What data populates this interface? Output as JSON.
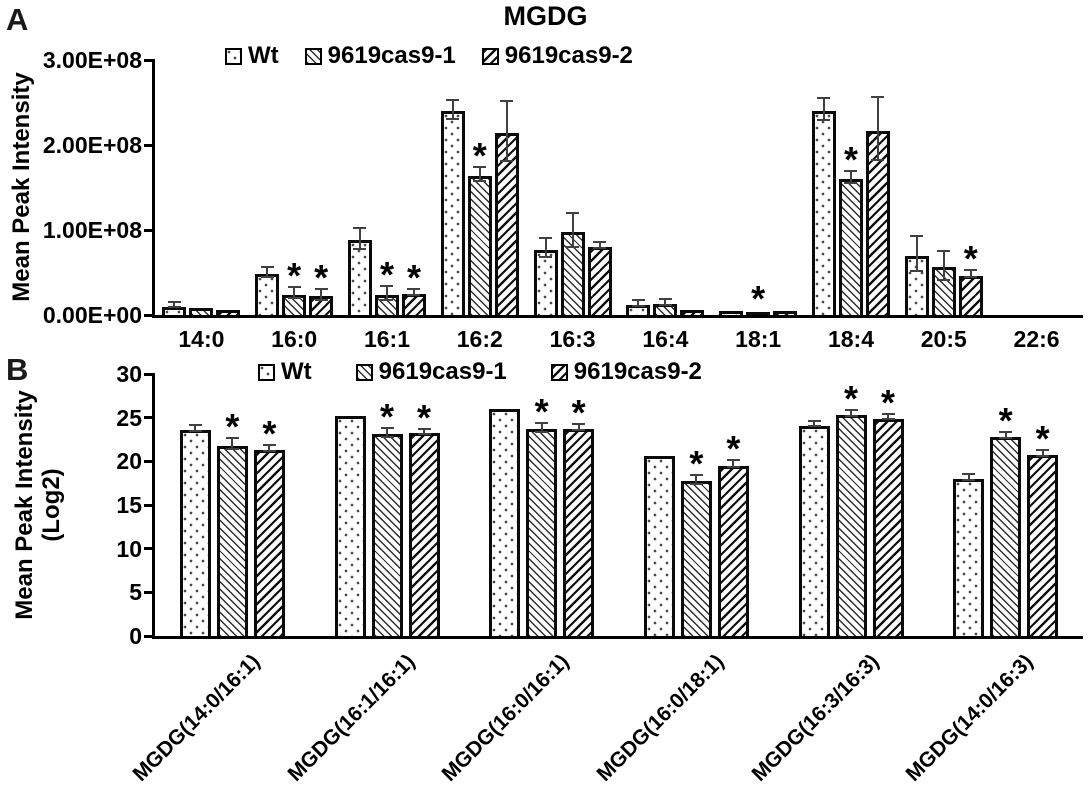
{
  "chart_data": [
    {
      "panel_label": "A",
      "type": "bar",
      "title": "MGDG",
      "ylabel": "Mean Peak Intensity",
      "ylim": [
        0,
        300000000
      ],
      "ytick_values": [
        0,
        100000000,
        200000000,
        300000000
      ],
      "ytick_labels": [
        "0.00E+00",
        "1.00E+08",
        "2.00E+08",
        "3.00E+08"
      ],
      "grid": false,
      "legend_position": "top",
      "significance_symbol": "*",
      "categories": [
        "14:0",
        "16:0",
        "16:1",
        "16:2",
        "16:3",
        "16:4",
        "18:1",
        "18:4",
        "20:5",
        "22:6"
      ],
      "series": [
        {
          "name": "Wt",
          "pattern": "dots",
          "values": [
            10000000,
            48000000,
            88000000,
            240000000,
            77000000,
            12000000,
            5000000,
            240000000,
            70000000,
            0
          ],
          "errors": [
            2000000,
            5000000,
            11000000,
            10000000,
            10000000,
            2500000,
            1000000,
            12000000,
            19000000,
            0
          ],
          "significant": [
            0,
            0,
            0,
            0,
            0,
            0,
            0,
            0,
            0,
            0
          ]
        },
        {
          "name": "9619cas9-1",
          "pattern": "hatch-down",
          "values": [
            8500000,
            24000000,
            24000000,
            164000000,
            98000000,
            13000000,
            1800000,
            160000000,
            56000000,
            0
          ],
          "errors": [
            1000000,
            5000000,
            7000000,
            7000000,
            19000000,
            2000000,
            0,
            6000000,
            16000000,
            0
          ],
          "significant": [
            0,
            1,
            1,
            1,
            0,
            0,
            1,
            1,
            0,
            0
          ]
        },
        {
          "name": "9619cas9-2",
          "pattern": "hatch-up",
          "values": [
            6000000,
            22000000,
            25000000,
            214000000,
            80000000,
            6000000,
            5000000,
            217000000,
            46000000,
            0
          ],
          "errors": [
            1000000,
            5000000,
            2500000,
            34000000,
            2500000,
            1000000,
            1000000,
            36000000,
            3000000,
            0
          ],
          "significant": [
            0,
            1,
            1,
            0,
            0,
            0,
            0,
            0,
            1,
            0
          ]
        }
      ]
    },
    {
      "panel_label": "B",
      "type": "bar",
      "title": "",
      "ylabel": "Mean Peak Intensity (Log2)",
      "ylabel_lines": [
        "Mean Peak Intensity",
        "(Log2)"
      ],
      "ylim": [
        0,
        30
      ],
      "ytick_values": [
        0,
        5,
        10,
        15,
        20,
        25,
        30
      ],
      "ytick_labels": [
        "0",
        "5",
        "10",
        "15",
        "20",
        "25",
        "30"
      ],
      "grid": false,
      "legend_position": "top",
      "significance_symbol": "*",
      "categories": [
        "MGDG(14:0/16:1)",
        "MGDG(16:1/16:1)",
        "MGDG(16:0/16:1)",
        "MGDG(16:0/18:1)",
        "MGDG(16:3/16:3)",
        "MGDG(14:0/16:3)"
      ],
      "series": [
        {
          "name": "Wt",
          "pattern": "dots",
          "values": [
            23.6,
            25.2,
            26.0,
            20.6,
            24.1,
            18.0
          ],
          "errors": [
            0.2,
            0.1,
            0.1,
            0.1,
            0.2,
            0.2
          ],
          "significant": [
            0,
            0,
            0,
            0,
            0,
            0
          ]
        },
        {
          "name": "9619cas9-1",
          "pattern": "hatch-down",
          "values": [
            21.8,
            23.1,
            23.7,
            17.7,
            25.3,
            22.8
          ],
          "errors": [
            0.5,
            0.4,
            0.4,
            0.4,
            0.2,
            0.2
          ],
          "significant": [
            1,
            1,
            1,
            1,
            1,
            1
          ]
        },
        {
          "name": "9619cas9-2",
          "pattern": "hatch-up",
          "values": [
            21.3,
            23.2,
            23.7,
            19.5,
            24.9,
            20.7
          ],
          "errors": [
            0.2,
            0.2,
            0.2,
            0.3,
            0.2,
            0.2
          ],
          "significant": [
            1,
            1,
            1,
            1,
            1,
            1
          ]
        }
      ]
    }
  ]
}
